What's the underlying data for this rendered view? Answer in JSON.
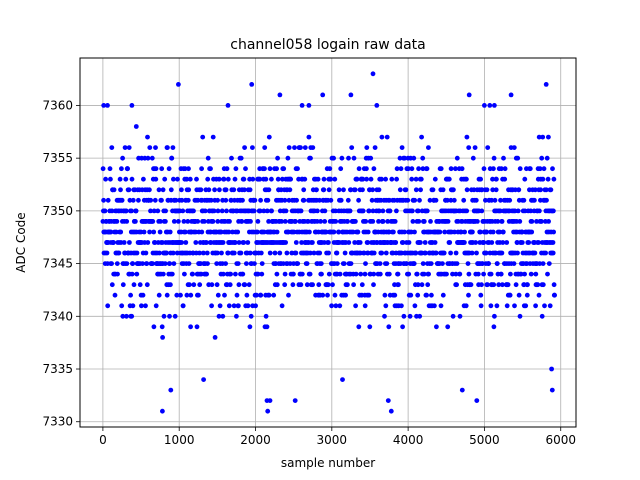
{
  "chart_data": {
    "type": "scatter",
    "title": "channel058 logain raw data",
    "xlabel": "sample number",
    "ylabel": "ADC Code",
    "xlim": [
      -300,
      6200
    ],
    "ylim": [
      7329.5,
      7364.5
    ],
    "xticks": [
      0,
      1000,
      2000,
      3000,
      4000,
      5000,
      6000
    ],
    "yticks": [
      7330,
      7335,
      7340,
      7345,
      7350,
      7355,
      7360
    ],
    "grid": true,
    "marker_color": "#0000ff",
    "series": [
      {
        "n_samples": 5920,
        "dense_band": [
          7341,
          7355
        ],
        "outliers": [
          {
            "x": 780,
            "y": 7331
          },
          {
            "x": 890,
            "y": 7333
          },
          {
            "x": 990,
            "y": 7362
          },
          {
            "x": 1320,
            "y": 7334
          },
          {
            "x": 1950,
            "y": 7362
          },
          {
            "x": 2150,
            "y": 7332
          },
          {
            "x": 2160,
            "y": 7331
          },
          {
            "x": 2190,
            "y": 7332
          },
          {
            "x": 2520,
            "y": 7332
          },
          {
            "x": 2320,
            "y": 7361
          },
          {
            "x": 2880,
            "y": 7361
          },
          {
            "x": 3140,
            "y": 7334
          },
          {
            "x": 3250,
            "y": 7361
          },
          {
            "x": 3540,
            "y": 7363
          },
          {
            "x": 3590,
            "y": 7360
          },
          {
            "x": 3740,
            "y": 7332
          },
          {
            "x": 3780,
            "y": 7331
          },
          {
            "x": 4710,
            "y": 7333
          },
          {
            "x": 4800,
            "y": 7361
          },
          {
            "x": 4900,
            "y": 7332
          },
          {
            "x": 5350,
            "y": 7361
          },
          {
            "x": 5810,
            "y": 7362
          },
          {
            "x": 5890,
            "y": 7333
          },
          {
            "x": 5880,
            "y": 7335
          },
          {
            "x": 10,
            "y": 7360
          },
          {
            "x": 60,
            "y": 7360
          },
          {
            "x": 380,
            "y": 7360
          },
          {
            "x": 1640,
            "y": 7360
          },
          {
            "x": 2610,
            "y": 7360
          },
          {
            "x": 2700,
            "y": 7360
          },
          {
            "x": 5000,
            "y": 7360
          },
          {
            "x": 5070,
            "y": 7360
          },
          {
            "x": 5130,
            "y": 7360
          }
        ]
      }
    ]
  }
}
